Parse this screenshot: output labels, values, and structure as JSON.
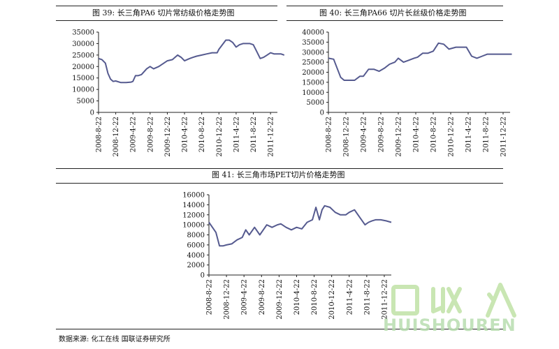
{
  "figures": {
    "fig39": {
      "caption": "图 39:  长三角PA6 切片常纺级价格走势图"
    },
    "fig40": {
      "caption": "图 40:  长三角PA66 切片长丝级价格走势图"
    },
    "fig41": {
      "caption": "图 41:  长三角市场PET切片价格走势图"
    }
  },
  "source_note": "数据来源: 化工在线  国联证券研究所",
  "watermark": {
    "text": "HUISHOUREN",
    "color": "#b8ddb0"
  },
  "line_color": "#555a8f",
  "chart_data": [
    {
      "type": "line",
      "id": "fig39",
      "x_ticks": [
        "2008-8-22",
        "2008-12-22",
        "2009-4-22",
        "2009-8-22",
        "2009-12-22",
        "2010-4-22",
        "2010-8-22",
        "2010-12-22",
        "2011-4-22",
        "2011-8-22",
        "2011-12-22"
      ],
      "yticks": [
        0,
        5000,
        10000,
        15000,
        20000,
        25000,
        30000,
        35000
      ],
      "ylim": [
        0,
        35000
      ],
      "x": [
        0,
        0.2,
        0.4,
        0.55,
        0.7,
        0.85,
        1.0,
        1.3,
        1.6,
        1.9,
        2.0,
        2.15,
        2.3,
        2.5,
        2.8,
        3.0,
        3.2,
        3.5,
        3.8,
        4.0,
        4.3,
        4.6,
        4.8,
        5.0,
        5.3,
        5.5,
        5.7,
        6.0,
        6.3,
        6.6,
        6.9,
        7.0,
        7.2,
        7.4,
        7.6,
        7.8,
        8.0,
        8.2,
        8.4,
        8.6,
        8.8,
        9.0,
        9.2,
        9.4,
        9.6,
        9.8,
        10.0,
        10.2,
        10.4,
        10.6,
        10.8
      ],
      "y": [
        23500,
        23000,
        21500,
        17000,
        14500,
        13500,
        13700,
        13000,
        13000,
        13200,
        13500,
        16000,
        16000,
        16500,
        19000,
        20000,
        19000,
        20000,
        21500,
        22500,
        23000,
        25000,
        24000,
        22500,
        23500,
        24000,
        24500,
        25000,
        25500,
        26000,
        26000,
        27500,
        29500,
        31500,
        31500,
        30500,
        28500,
        29500,
        30000,
        30000,
        30000,
        29500,
        26500,
        23500,
        24000,
        25000,
        26000,
        25500,
        25500,
        25500,
        25000
      ]
    },
    {
      "type": "line",
      "id": "fig40",
      "x_ticks": [
        "2008-8-22",
        "2008-12-22",
        "2009-4-22",
        "2009-8-22",
        "2009-12-22",
        "2010-4-22",
        "2010-8-22",
        "2010-12-22",
        "2011-4-22",
        "2011-8-22",
        "2011-12-22"
      ],
      "yticks": [
        0,
        5000,
        10000,
        15000,
        20000,
        25000,
        30000,
        35000,
        40000
      ],
      "ylim": [
        0,
        40000
      ],
      "x": [
        0,
        0.3,
        0.5,
        0.7,
        0.9,
        1.2,
        1.5,
        1.8,
        2.0,
        2.3,
        2.6,
        2.9,
        3.2,
        3.5,
        3.8,
        4.0,
        4.3,
        4.6,
        4.9,
        5.1,
        5.4,
        5.7,
        6.0,
        6.3,
        6.6,
        6.9,
        7.1,
        7.3,
        7.6,
        7.9,
        8.2,
        8.5,
        8.8,
        9.1,
        9.4,
        9.7,
        9.9,
        10.1,
        10.3,
        10.5
      ],
      "y": [
        27000,
        26500,
        22000,
        17500,
        16000,
        16000,
        16000,
        18000,
        18000,
        21500,
        21500,
        20500,
        22000,
        24000,
        25000,
        27000,
        25000,
        26000,
        27000,
        27500,
        29500,
        29500,
        30500,
        34500,
        34000,
        31500,
        32000,
        32500,
        32500,
        32500,
        28000,
        27000,
        28000,
        29000,
        29000,
        29000,
        29000,
        29000,
        29000,
        29000
      ]
    },
    {
      "type": "line",
      "id": "fig41",
      "x_ticks": [
        "2008-8-22",
        "2008-12-22",
        "2009-4-22",
        "2009-8-22",
        "2009-12-22",
        "2010-4-22",
        "2010-8-22",
        "2010-12-22",
        "2011-4-22",
        "2011-8-22",
        "2011-12-22"
      ],
      "yticks": [
        0,
        2000,
        4000,
        6000,
        8000,
        10000,
        12000,
        14000,
        16000
      ],
      "ylim": [
        0,
        16000
      ],
      "x": [
        0,
        0.2,
        0.4,
        0.6,
        0.8,
        1.0,
        1.3,
        1.6,
        1.9,
        2.1,
        2.3,
        2.6,
        2.9,
        3.1,
        3.3,
        3.6,
        3.9,
        4.1,
        4.4,
        4.7,
        5.0,
        5.3,
        5.6,
        5.9,
        6.1,
        6.3,
        6.45,
        6.6,
        6.9,
        7.2,
        7.5,
        7.8,
        8.0,
        8.3,
        8.6,
        8.9,
        9.1,
        9.3,
        9.5,
        9.8,
        10.1,
        10.4
      ],
      "y": [
        10500,
        9500,
        8500,
        5800,
        5800,
        6000,
        6200,
        7000,
        7500,
        9000,
        8000,
        9500,
        8000,
        9000,
        10000,
        9500,
        10000,
        10200,
        9500,
        9000,
        9500,
        9200,
        10500,
        11000,
        13500,
        11000,
        13000,
        13800,
        13500,
        12500,
        12000,
        12000,
        12500,
        13000,
        11500,
        10000,
        10500,
        10800,
        11000,
        11000,
        10800,
        10500
      ]
    }
  ]
}
